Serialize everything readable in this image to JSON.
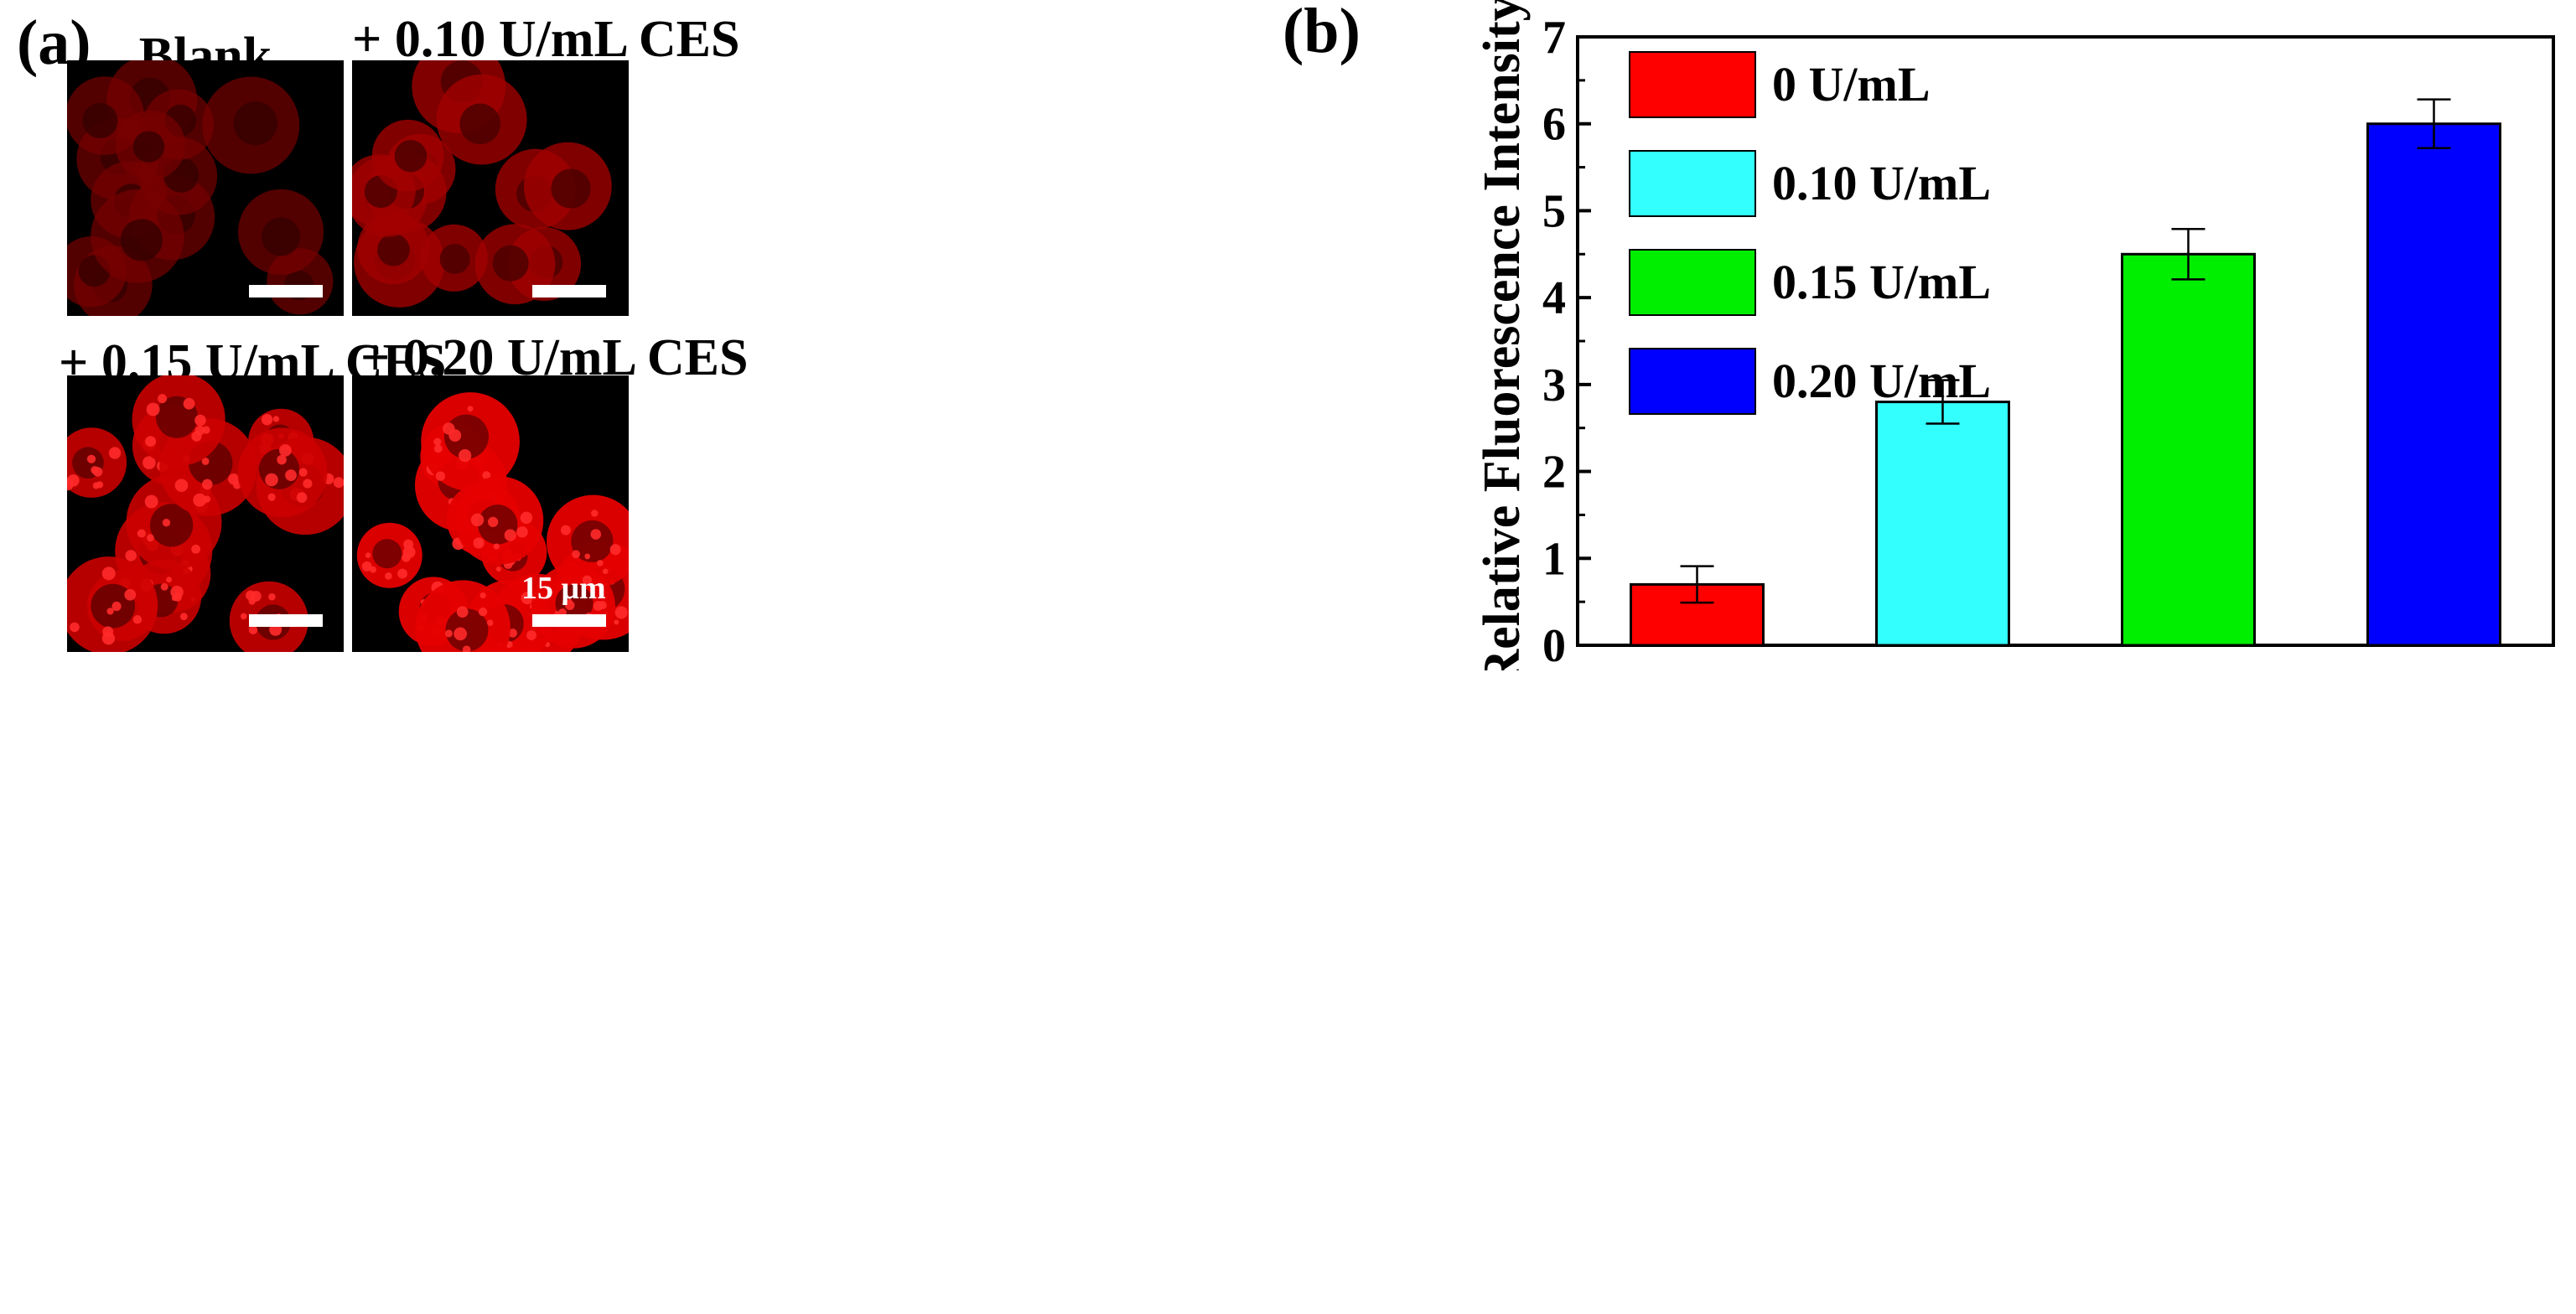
{
  "panel_a": {
    "letter": "(a)",
    "images": [
      {
        "title": "Blank",
        "intensity": 0.35
      },
      {
        "title": "+ 0.10 U/mL CES",
        "intensity": 0.6
      },
      {
        "title": "+ 0.15 U/mL CES",
        "intensity": 0.85
      },
      {
        "title": "+ 0.20 U/mL CES",
        "intensity": 1.0
      }
    ],
    "scale_bar_label": "15 μm"
  },
  "chart_data": {
    "type": "bar",
    "panel_letter": "(b)",
    "categories": [
      "0 U/mL",
      "0.10 U/mL",
      "0.15 U/mL",
      "0.20 U/mL"
    ],
    "values": [
      0.7,
      2.8,
      4.5,
      6.0
    ],
    "errors": [
      0.21,
      0.25,
      0.29,
      0.28
    ],
    "colors": [
      "#ff0000",
      "#33ffff",
      "#00ee00",
      "#0000ff"
    ],
    "title": "",
    "xlabel": "",
    "ylabel": "Relative Fluorescence Intensity",
    "ylim": [
      0,
      7.0
    ],
    "yticks": [
      0,
      1,
      2,
      3,
      4,
      5,
      6,
      7
    ],
    "legend_position": "top-left",
    "grid": false
  }
}
